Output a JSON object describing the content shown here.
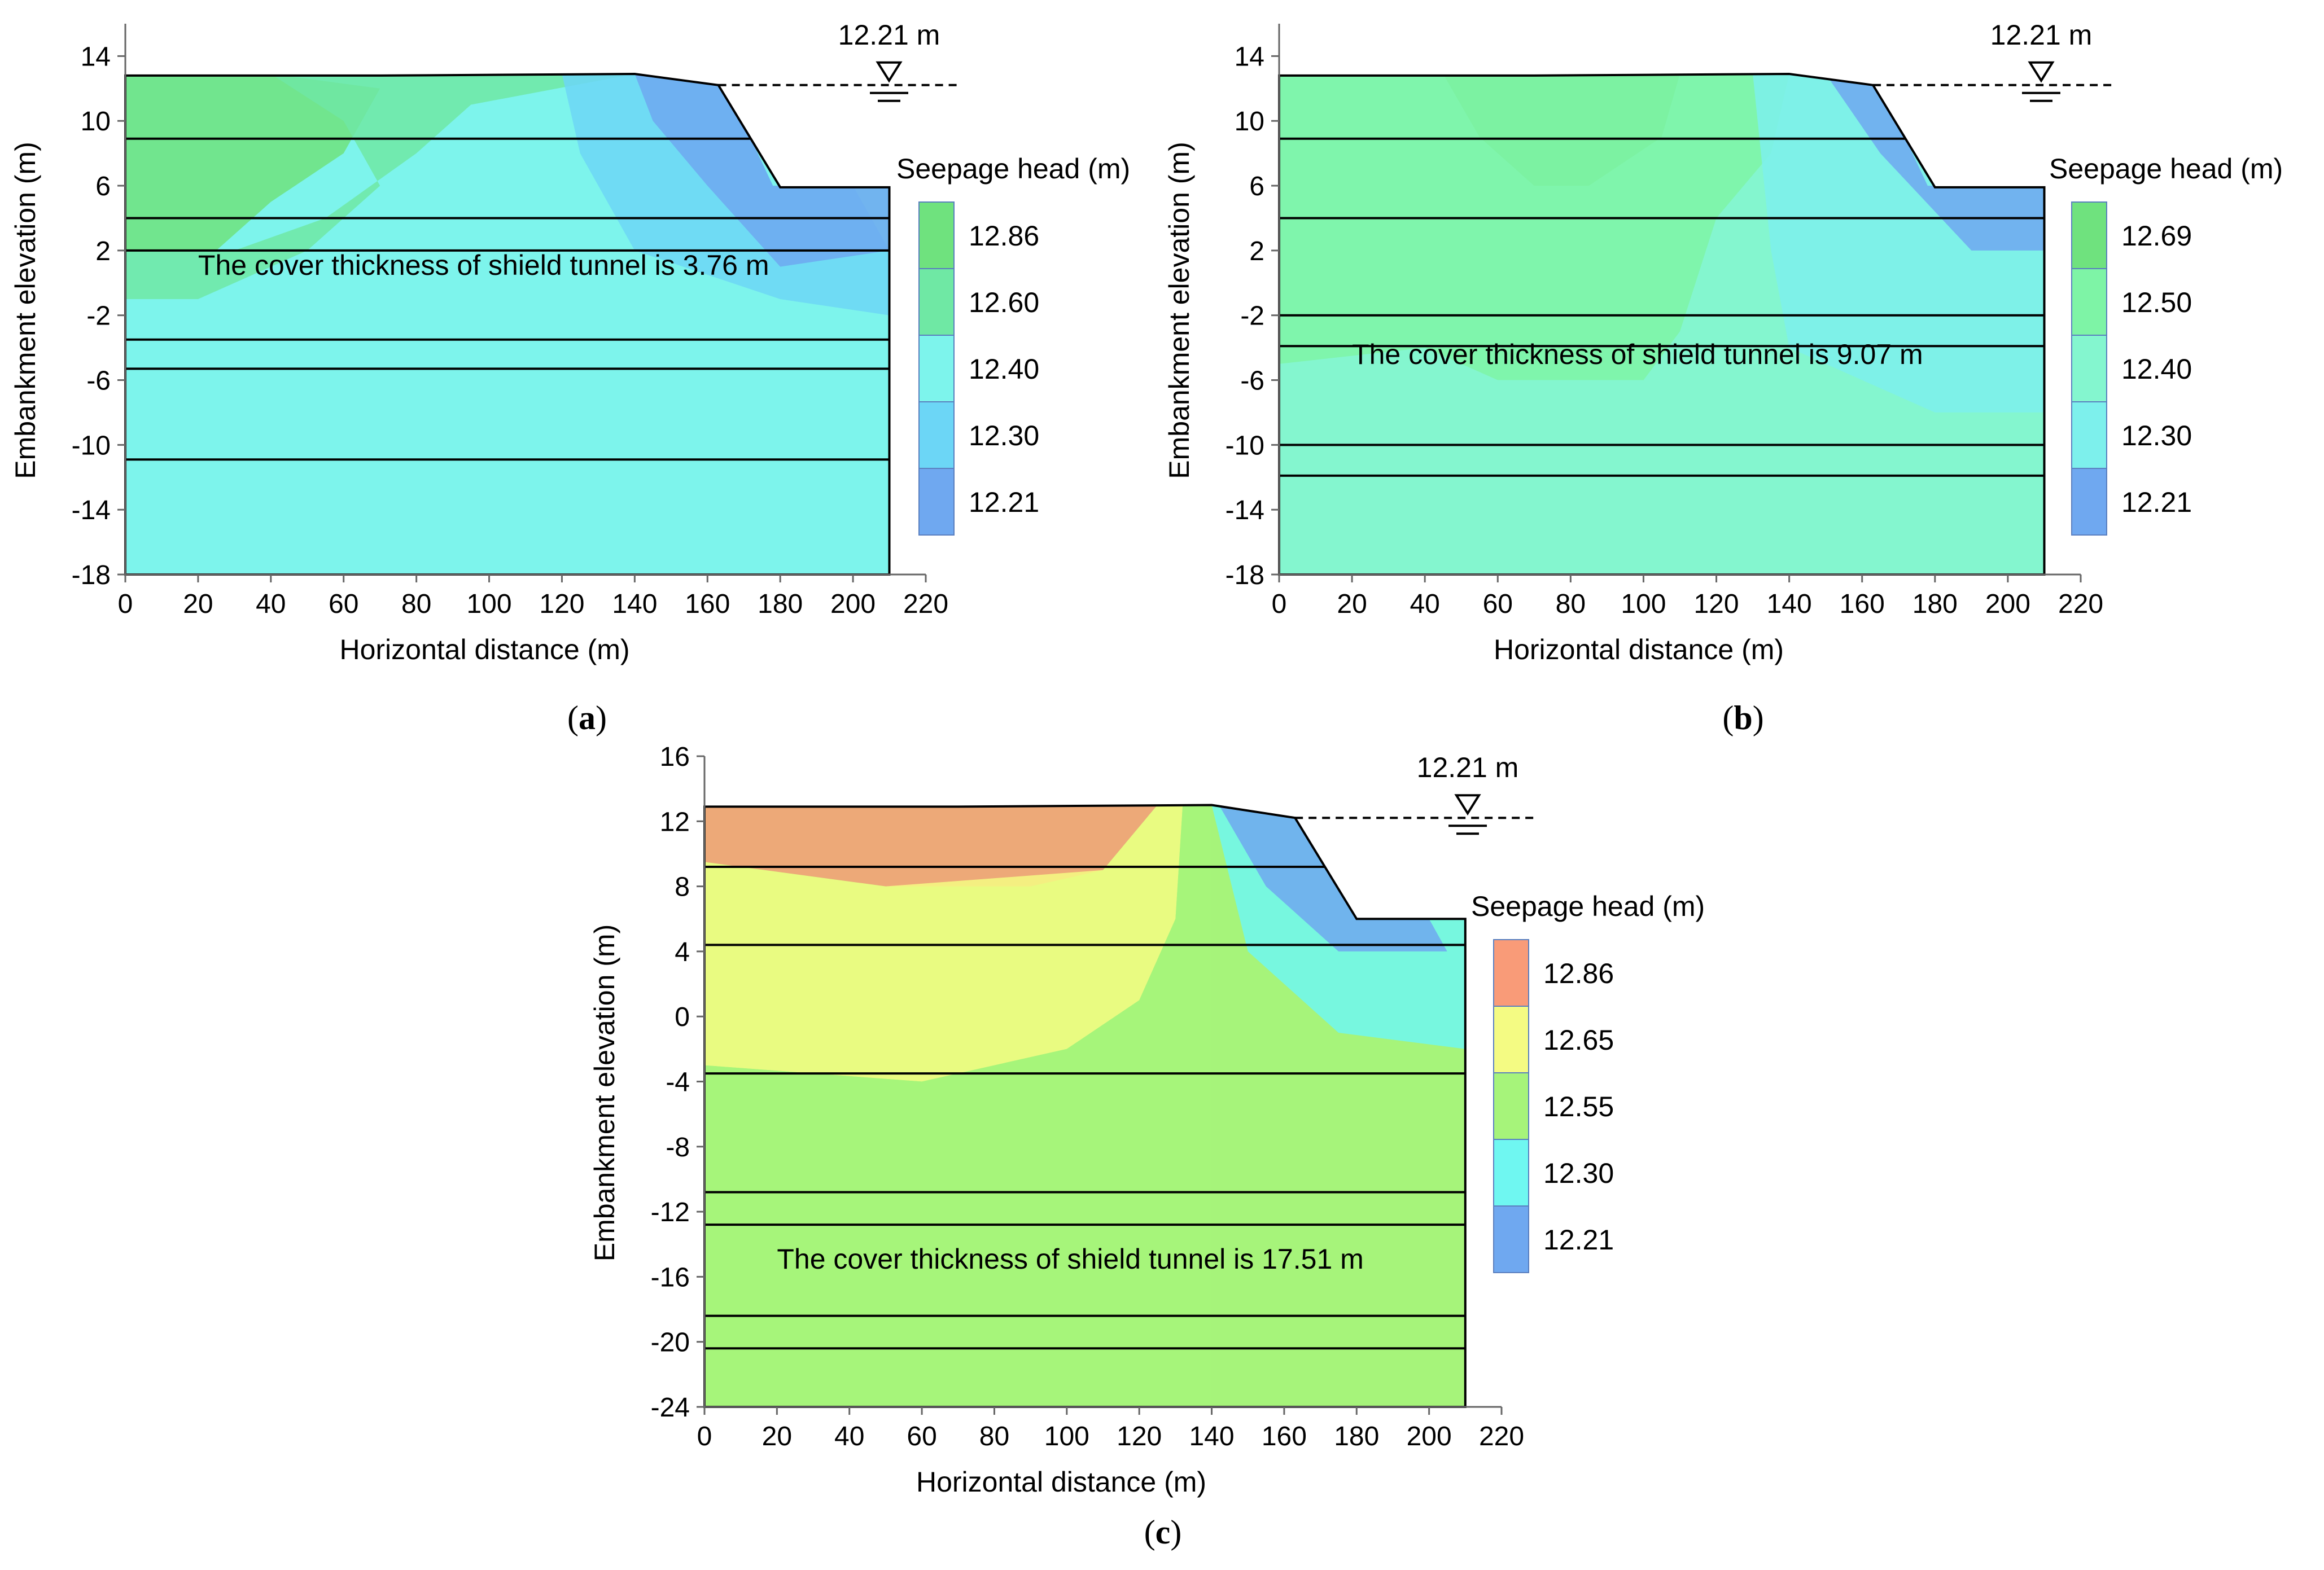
{
  "chart_data": [
    {
      "type": "heatmap",
      "panel_label": "a",
      "title": "",
      "xlabel": "Horizontal distance (m)",
      "ylabel": "Embankment elevation (m)",
      "x_ticks": [
        0,
        20,
        40,
        60,
        80,
        100,
        120,
        140,
        160,
        180,
        200,
        220
      ],
      "y_ticks": [
        14,
        10,
        6,
        2,
        -2,
        -6,
        -10,
        -14,
        -18
      ],
      "xlim": [
        0,
        220
      ],
      "ylim": [
        -18,
        16
      ],
      "annotation": "The cover thickness of shield tunnel is 3.76 m",
      "water_level_label": "12.21 m",
      "water_level_value": 12.21,
      "legend_title": "Seepage head (m)",
      "legend_items": [
        {
          "label": "12.86",
          "value": 12.86,
          "color": "#6FE27E"
        },
        {
          "label": "12.60",
          "value": 12.6,
          "color": "#6FE8A4"
        },
        {
          "label": "12.40",
          "value": 12.4,
          "color": "#7DF4EC"
        },
        {
          "label": "12.30",
          "value": 12.3,
          "color": "#6CD6F6"
        },
        {
          "label": "12.21",
          "value": 12.21,
          "color": "#6FA8F0"
        }
      ],
      "crest_elevation": 12.9,
      "toe_elevation": 5.9,
      "layer_boundaries": [
        8.9,
        4.0,
        2.0,
        -3.5,
        -5.3,
        -10.9
      ],
      "base_fill_color": "#7DF4EC"
    },
    {
      "type": "heatmap",
      "panel_label": "b",
      "title": "",
      "xlabel": "Horizontal distance (m)",
      "ylabel": "Embankment elevation (m)",
      "x_ticks": [
        0,
        20,
        40,
        60,
        80,
        100,
        120,
        140,
        160,
        180,
        200,
        220
      ],
      "y_ticks": [
        14,
        10,
        6,
        2,
        -2,
        -6,
        -10,
        -14,
        -18
      ],
      "xlim": [
        0,
        220
      ],
      "ylim": [
        -18,
        16
      ],
      "annotation": "The cover thickness of shield tunnel is 9.07 m",
      "water_level_label": "12.21 m",
      "water_level_value": 12.21,
      "legend_title": "Seepage head (m)",
      "legend_items": [
        {
          "label": "12.69",
          "value": 12.69,
          "color": "#6FE27E"
        },
        {
          "label": "12.50",
          "value": 12.5,
          "color": "#7EF4A6"
        },
        {
          "label": "12.40",
          "value": 12.4,
          "color": "#84F6CF"
        },
        {
          "label": "12.30",
          "value": 12.3,
          "color": "#7DF0EC"
        },
        {
          "label": "12.21",
          "value": 12.21,
          "color": "#6FA8F0"
        }
      ],
      "crest_elevation": 12.9,
      "toe_elevation": 5.9,
      "layer_boundaries": [
        8.9,
        4.0,
        -2.0,
        -3.9,
        -10.0,
        -11.9
      ],
      "base_fill_color": "#84F6CF"
    },
    {
      "type": "heatmap",
      "panel_label": "c",
      "title": "",
      "xlabel": "Horizontal distance (m)",
      "ylabel": "Embankment elevation (m)",
      "x_ticks": [
        0,
        20,
        40,
        60,
        80,
        100,
        120,
        140,
        160,
        180,
        200,
        220
      ],
      "y_ticks": [
        16,
        12,
        8,
        4,
        0,
        -4,
        -8,
        -12,
        -16,
        -20,
        -24
      ],
      "xlim": [
        0,
        220
      ],
      "ylim": [
        -24,
        16
      ],
      "annotation": "The cover thickness of shield tunnel is 17.51 m",
      "water_level_label": "12.21 m",
      "water_level_value": 12.21,
      "legend_title": "Seepage head (m)",
      "legend_items": [
        {
          "label": "12.86",
          "value": 12.86,
          "color": "#F99B78"
        },
        {
          "label": "12.65",
          "value": 12.65,
          "color": "#F4FB83"
        },
        {
          "label": "12.55",
          "value": 12.55,
          "color": "#A6F47A"
        },
        {
          "label": "12.30",
          "value": 12.3,
          "color": "#6FF7F1"
        },
        {
          "label": "12.21",
          "value": 12.21,
          "color": "#6FA8F0"
        }
      ],
      "crest_elevation": 13.0,
      "toe_elevation": 6.0,
      "layer_boundaries": [
        9.2,
        4.4,
        -3.5,
        -10.8,
        -12.8,
        -18.4,
        -20.4
      ],
      "base_fill_color": "#A6F47A"
    }
  ]
}
